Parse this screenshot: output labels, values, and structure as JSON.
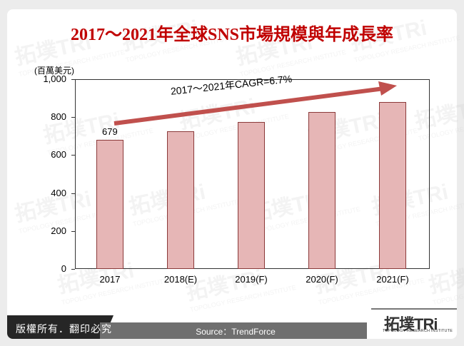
{
  "title": "2017～2021年全球SNS市場規模與年成長率",
  "unit_label": "(百萬美元)",
  "annotation": "2017～2021年CAGR=6.7%",
  "footer": {
    "copyright": "版權所有．翻印必究",
    "source": "Source：TrendForce",
    "logo_text": "拓墣TRi",
    "logo_subtext": "TOPOLOGY RESEARCH INSTITUTE"
  },
  "watermark": {
    "text": "拓墣TRi",
    "subtext": "TOPOLOGY RESEARCH INSTITUTE"
  },
  "y_ticks": [
    "1,000",
    "800",
    "600",
    "400",
    "200",
    "0"
  ],
  "colors": {
    "title": "#c00000",
    "bar_fill": "#e6b6b6",
    "bar_border": "#8b3a3a",
    "arrow": "#c0504d"
  },
  "chart_data": {
    "type": "bar",
    "title": "2017～2021年全球SNS市場規模與年成長率",
    "categories": [
      "2017",
      "2018(E)",
      "2019(F)",
      "2020(F)",
      "2021(F)"
    ],
    "values": [
      679,
      725,
      774,
      827,
      880
    ],
    "data_labels": {
      "2017": "679"
    },
    "xlabel": "",
    "ylabel": "(百萬美元)",
    "ylim": [
      0,
      1000
    ],
    "yticks": [
      0,
      200,
      400,
      600,
      800,
      1000
    ],
    "annotations": [
      "2017～2021年CAGR=6.7%"
    ],
    "grid": false,
    "legend": null
  }
}
